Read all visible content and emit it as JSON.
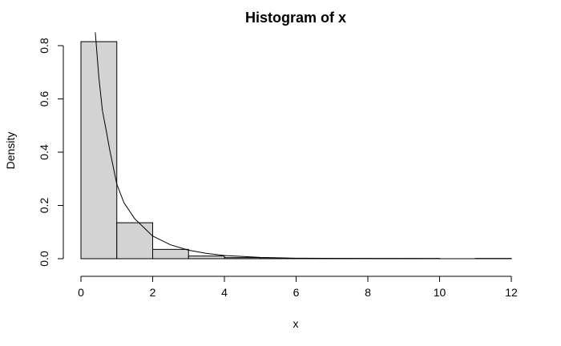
{
  "chart_data": {
    "type": "bar",
    "title": "Histogram of x",
    "xlabel": "x",
    "ylabel": "Density",
    "bar_color": "#d3d3d3",
    "xlim": [
      0,
      12
    ],
    "ylim": [
      0,
      0.8
    ],
    "x_ticks": [
      "0",
      "2",
      "4",
      "6",
      "8",
      "10",
      "12"
    ],
    "y_ticks": [
      "0.0",
      "0.2",
      "0.4",
      "0.6",
      "0.8"
    ],
    "bins": [
      {
        "x0": 0,
        "x1": 1,
        "density": 0.815
      },
      {
        "x0": 1,
        "x1": 2,
        "density": 0.135
      },
      {
        "x0": 2,
        "x1": 3,
        "density": 0.035
      },
      {
        "x0": 3,
        "x1": 4,
        "density": 0.01
      },
      {
        "x0": 4,
        "x1": 5,
        "density": 0.004
      },
      {
        "x0": 5,
        "x1": 6,
        "density": 0.001
      },
      {
        "x0": 6,
        "x1": 7,
        "density": 0.001
      },
      {
        "x0": 7,
        "x1": 8,
        "density": 0.001
      },
      {
        "x0": 8,
        "x1": 9,
        "density": 0.001
      },
      {
        "x0": 9,
        "x1": 10,
        "density": 0.001
      },
      {
        "x0": 10,
        "x1": 11,
        "density": 0
      },
      {
        "x0": 11,
        "x1": 12,
        "density": 0.001
      }
    ],
    "curve": {
      "description": "overlaid density curve",
      "points": [
        [
          0.4,
          0.85
        ],
        [
          0.5,
          0.68
        ],
        [
          0.6,
          0.555
        ],
        [
          0.7,
          0.485
        ],
        [
          0.8,
          0.41
        ],
        [
          1.0,
          0.28
        ],
        [
          1.2,
          0.21
        ],
        [
          1.5,
          0.15
        ],
        [
          2.0,
          0.085
        ],
        [
          2.5,
          0.052
        ],
        [
          3.0,
          0.032
        ],
        [
          3.5,
          0.02
        ],
        [
          4.0,
          0.012
        ],
        [
          5.0,
          0.005
        ],
        [
          6.0,
          0.002
        ],
        [
          8.0,
          0.0005
        ],
        [
          10.0,
          0.0001
        ],
        [
          12.0,
          0.0
        ]
      ]
    }
  }
}
